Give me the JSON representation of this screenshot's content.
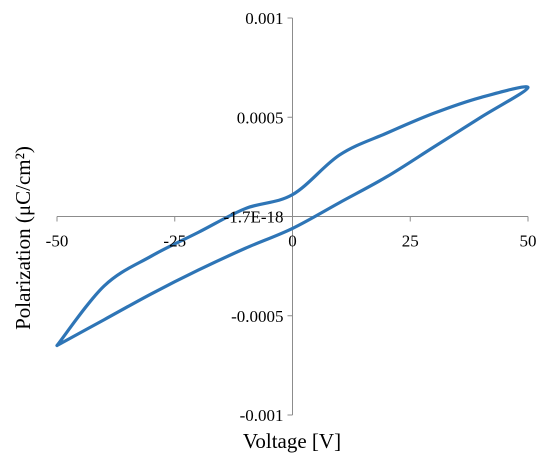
{
  "chart_data": {
    "type": "line",
    "title": "",
    "xlabel": "Voltage [V]",
    "ylabel": "Polarization (μC/cm²)",
    "xlim": [
      -50,
      50
    ],
    "ylim": [
      -0.001,
      0.001
    ],
    "x_ticks": [
      -50,
      -25,
      0,
      25,
      50
    ],
    "x_tick_labels": [
      "-50",
      "-25",
      "0",
      "25",
      "50"
    ],
    "y_ticks": [
      0.001,
      0.0005,
      0,
      -0.0005,
      -0.001
    ],
    "y_tick_labels": [
      "0.001",
      "0.0005",
      "-1.7E-18",
      "-0.0005",
      "-0.001"
    ],
    "grid": false,
    "legend": "none",
    "series": [
      {
        "color": "#2e75b6",
        "x": [
          -50,
          -40,
          -30,
          -20,
          -10,
          0,
          10,
          20,
          30,
          40,
          50,
          40,
          30,
          20,
          10,
          0,
          -10,
          -20,
          -30,
          -40,
          -50
        ],
        "y": [
          -0.00065,
          -0.00052,
          -0.00039,
          -0.00027,
          -0.00016,
          -6e-05,
          7e-05,
          0.0002,
          0.00035,
          0.0005,
          0.00065,
          0.0006,
          0.00052,
          0.00042,
          0.00031,
          0.00011,
          4e-05,
          -8e-05,
          -0.0002,
          -0.00035,
          -0.00065
        ]
      }
    ]
  }
}
